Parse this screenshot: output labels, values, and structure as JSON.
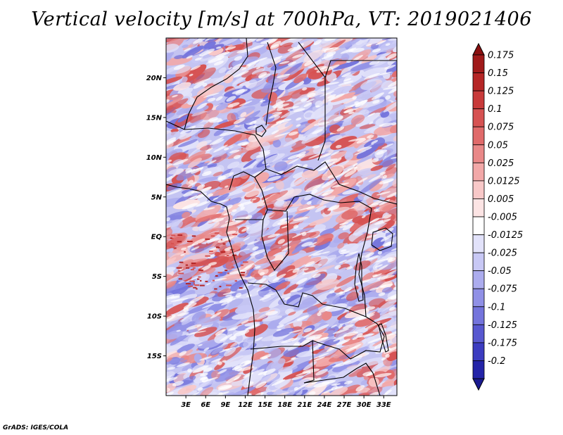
{
  "title": "Vertical velocity [m/s] at 700hPa, VT: 2019021406",
  "credit": "GrADS: IGES/COLA",
  "map": {
    "lon_range": [
      0,
      35
    ],
    "lat_range": [
      -20,
      25
    ],
    "lat_ticks": [
      {
        "value": 20,
        "label": "20N"
      },
      {
        "value": 15,
        "label": "15N"
      },
      {
        "value": 10,
        "label": "10N"
      },
      {
        "value": 5,
        "label": "5N"
      },
      {
        "value": 0,
        "label": "EQ"
      },
      {
        "value": -5,
        "label": "5S"
      },
      {
        "value": -10,
        "label": "10S"
      },
      {
        "value": -15,
        "label": "15S"
      }
    ],
    "lon_ticks": [
      {
        "value": 3,
        "label": "3E"
      },
      {
        "value": 6,
        "label": "6E"
      },
      {
        "value": 9,
        "label": "9E"
      },
      {
        "value": 12,
        "label": "12E"
      },
      {
        "value": 15,
        "label": "15E"
      },
      {
        "value": 18,
        "label": "18E"
      },
      {
        "value": 21,
        "label": "21E"
      },
      {
        "value": 24,
        "label": "24E"
      },
      {
        "value": 27,
        "label": "27E"
      },
      {
        "value": 30,
        "label": "30E"
      },
      {
        "value": 33,
        "label": "33E"
      }
    ]
  },
  "colorbar": {
    "levels": [
      {
        "label": "0.175",
        "color": "#a01a1a"
      },
      {
        "label": "0.15",
        "color": "#b52626"
      },
      {
        "label": "0.125",
        "color": "#c83a3a"
      },
      {
        "label": "0.1",
        "color": "#d65252"
      },
      {
        "label": "0.075",
        "color": "#e06a6a"
      },
      {
        "label": "0.05",
        "color": "#e98888"
      },
      {
        "label": "0.025",
        "color": "#f2a8a8"
      },
      {
        "label": "0.0125",
        "color": "#f8c8c8"
      },
      {
        "label": "0.005",
        "color": "#fce4e4"
      },
      {
        "label": "-0.005",
        "color": "#ffffff"
      },
      {
        "label": "-0.0125",
        "color": "#e2e2fa"
      },
      {
        "label": "-0.025",
        "color": "#c8c8f5"
      },
      {
        "label": "-0.05",
        "color": "#acacee"
      },
      {
        "label": "-0.075",
        "color": "#9090e6"
      },
      {
        "label": "-0.1",
        "color": "#7474dc"
      },
      {
        "label": "-0.125",
        "color": "#5858d0"
      },
      {
        "label": "-0.175",
        "color": "#3c3cc0"
      },
      {
        "label": "-0.2",
        "color": "#2424a8"
      }
    ],
    "over_color": "#8a1010",
    "under_color": "#1a1a90"
  }
}
